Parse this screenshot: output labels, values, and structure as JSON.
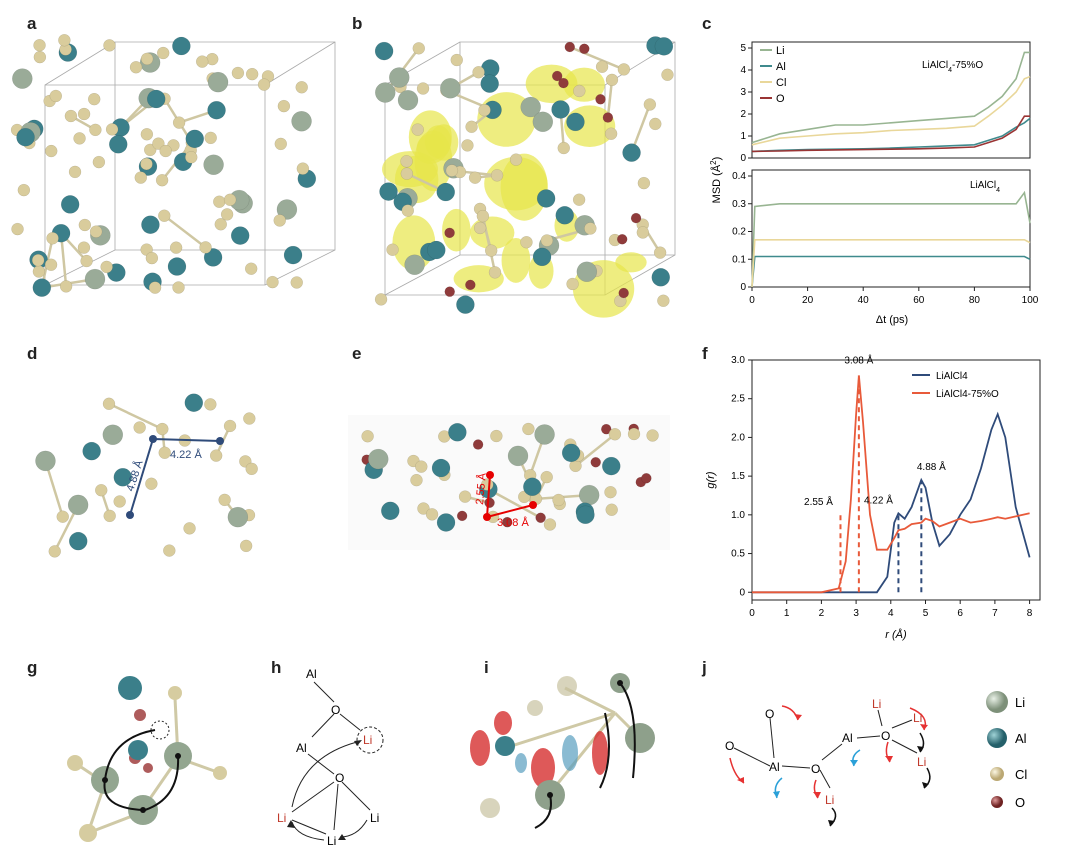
{
  "panel_labels": [
    "a",
    "b",
    "c",
    "d",
    "e",
    "f",
    "g",
    "h",
    "i",
    "j"
  ],
  "colors": {
    "Li": "#9aab98",
    "Al": "#3b7f8a",
    "Cl": "#d9cc9c",
    "O": "#8f3b3b",
    "isosurface": "#e7e54a",
    "line_blue": "#2f4b7a",
    "line_red": "#e85a3a",
    "msd_Li": "#98b592",
    "msd_Al": "#3f8a8d",
    "msd_Cl": "#e9d79a",
    "msd_O": "#9a3434",
    "arrow_red": "#e63232",
    "arrow_blue": "#2aa0d8"
  },
  "panel_c": {
    "top": {
      "annotation": "LiAlCl",
      "annotation_sub": "4",
      "annotation_tail": "-75%O",
      "legend": [
        "Li",
        "Al",
        "Cl",
        "O"
      ],
      "yticks": [
        "0",
        "1",
        "2",
        "3",
        "4",
        "5"
      ]
    },
    "bottom": {
      "annotation": "LiAlCl",
      "annotation_sub": "4",
      "yticks": [
        "0",
        "0.1",
        "0.2",
        "0.3",
        "0.4"
      ]
    },
    "xticks": [
      "0",
      "20",
      "40",
      "60",
      "80",
      "100"
    ],
    "ylabel": "MSD (Å",
    "ylabel_sup": "2",
    "ylabel_tail": ")",
    "xlabel": "Δt (ps)"
  },
  "chart_data": [
    {
      "type": "line",
      "panel": "c-top",
      "title": "LiAlCl4-75%O",
      "xlabel": "Δt (ps)",
      "ylabel": "MSD (Å2)",
      "xlim": [
        0,
        100
      ],
      "ylim": [
        0,
        5
      ],
      "x": [
        0,
        10,
        20,
        30,
        40,
        50,
        60,
        70,
        80,
        85,
        90,
        95,
        98,
        100
      ],
      "series": [
        {
          "name": "Li",
          "values": [
            0.7,
            1.1,
            1.3,
            1.5,
            1.5,
            1.6,
            1.7,
            1.8,
            1.9,
            2.3,
            2.8,
            3.6,
            4.8,
            4.8
          ]
        },
        {
          "name": "Al",
          "values": [
            0.3,
            0.35,
            0.38,
            0.4,
            0.42,
            0.45,
            0.5,
            0.55,
            0.6,
            0.8,
            1.0,
            1.4,
            1.6,
            1.8
          ]
        },
        {
          "name": "Cl",
          "values": [
            0.6,
            0.9,
            1.0,
            1.1,
            1.15,
            1.25,
            1.3,
            1.35,
            1.45,
            1.9,
            2.4,
            3.0,
            3.6,
            3.7
          ]
        },
        {
          "name": "O",
          "values": [
            0.3,
            0.32,
            0.35,
            0.37,
            0.38,
            0.4,
            0.42,
            0.45,
            0.5,
            0.7,
            0.9,
            1.3,
            1.9,
            1.9
          ]
        }
      ]
    },
    {
      "type": "line",
      "panel": "c-bottom",
      "title": "LiAlCl4",
      "xlabel": "Δt (ps)",
      "ylabel": "MSD (Å2)",
      "xlim": [
        0,
        100
      ],
      "ylim": [
        0,
        0.4
      ],
      "x": [
        0,
        1,
        10,
        20,
        40,
        60,
        80,
        95,
        98,
        100
      ],
      "series": [
        {
          "name": "Li",
          "values": [
            0.0,
            0.29,
            0.3,
            0.3,
            0.3,
            0.3,
            0.3,
            0.3,
            0.34,
            0.23
          ]
        },
        {
          "name": "Al",
          "values": [
            0.0,
            0.11,
            0.11,
            0.11,
            0.11,
            0.11,
            0.11,
            0.11,
            0.11,
            0.1
          ]
        },
        {
          "name": "Cl",
          "values": [
            0.0,
            0.17,
            0.17,
            0.17,
            0.17,
            0.17,
            0.17,
            0.17,
            0.17,
            0.16
          ]
        }
      ]
    },
    {
      "type": "line",
      "panel": "f",
      "xlabel": "r (Å)",
      "ylabel": "g(r)",
      "xlim": [
        0,
        8.3
      ],
      "ylim": [
        -0.1,
        3.0
      ],
      "x": [
        0,
        2.0,
        2.5,
        2.7,
        2.85,
        3.0,
        3.08,
        3.2,
        3.4,
        3.6,
        3.9,
        4.1,
        4.22,
        4.4,
        4.6,
        4.88,
        5.0,
        5.2,
        5.4,
        5.7,
        6.0,
        6.3,
        6.6,
        6.9,
        7.08,
        7.3,
        7.6,
        8.0
      ],
      "series": [
        {
          "name": "LiAlCl4",
          "values": [
            0,
            0,
            0,
            0,
            0,
            0,
            0,
            0,
            0,
            0,
            0.2,
            0.9,
            1.02,
            0.95,
            1.1,
            1.45,
            1.35,
            0.9,
            0.6,
            0.75,
            1.0,
            1.2,
            1.6,
            2.1,
            2.3,
            2.0,
            1.1,
            0.45
          ]
        },
        {
          "name": "LiAlCl4-75%O",
          "values": [
            0,
            0,
            0.05,
            0.4,
            1.2,
            2.3,
            2.8,
            2.2,
            1.0,
            0.55,
            0.55,
            0.7,
            0.8,
            0.82,
            0.88,
            0.9,
            0.95,
            0.92,
            0.85,
            0.9,
            0.95,
            0.9,
            0.92,
            0.95,
            0.97,
            0.95,
            0.98,
            1.02
          ]
        }
      ],
      "peak_labels": [
        "2.55 Å",
        "3.08 Å",
        "4.22 Å",
        "4.88 Å"
      ],
      "peak_positions": [
        2.55,
        3.08,
        4.22,
        4.88
      ],
      "xticks": [
        "0",
        "1",
        "2",
        "3",
        "4",
        "5",
        "6",
        "7",
        "8"
      ],
      "yticks": [
        "0",
        "0.5",
        "1.0",
        "1.5",
        "2.0",
        "2.5",
        "3.0"
      ],
      "legend": [
        "LiAlCl4",
        "LiAlCl4-75%O"
      ]
    }
  ],
  "panel_d": {
    "dist1": "4.88 Å",
    "dist2": "4.22 Å"
  },
  "panel_e": {
    "dist1": "2.55 Å",
    "dist2": "3.08 Å"
  },
  "panel_h": {
    "al_top": "Al",
    "o_top": "O",
    "al_mid": "Al",
    "li_circle": "Li",
    "o_mid": "O",
    "li_left": "Li",
    "li_right": "Li",
    "li_bottom": "Li"
  },
  "panel_j": {
    "o1": "O",
    "o2": "O",
    "al1": "Al",
    "o3": "O",
    "li1": "Li",
    "al2": "Al",
    "o4": "O",
    "li2": "Li",
    "li3": "Li",
    "li4": "Li",
    "li5": "Li"
  },
  "legend_atoms": [
    {
      "label": "Li"
    },
    {
      "label": "Al"
    },
    {
      "label": "Cl"
    },
    {
      "label": "O"
    }
  ]
}
